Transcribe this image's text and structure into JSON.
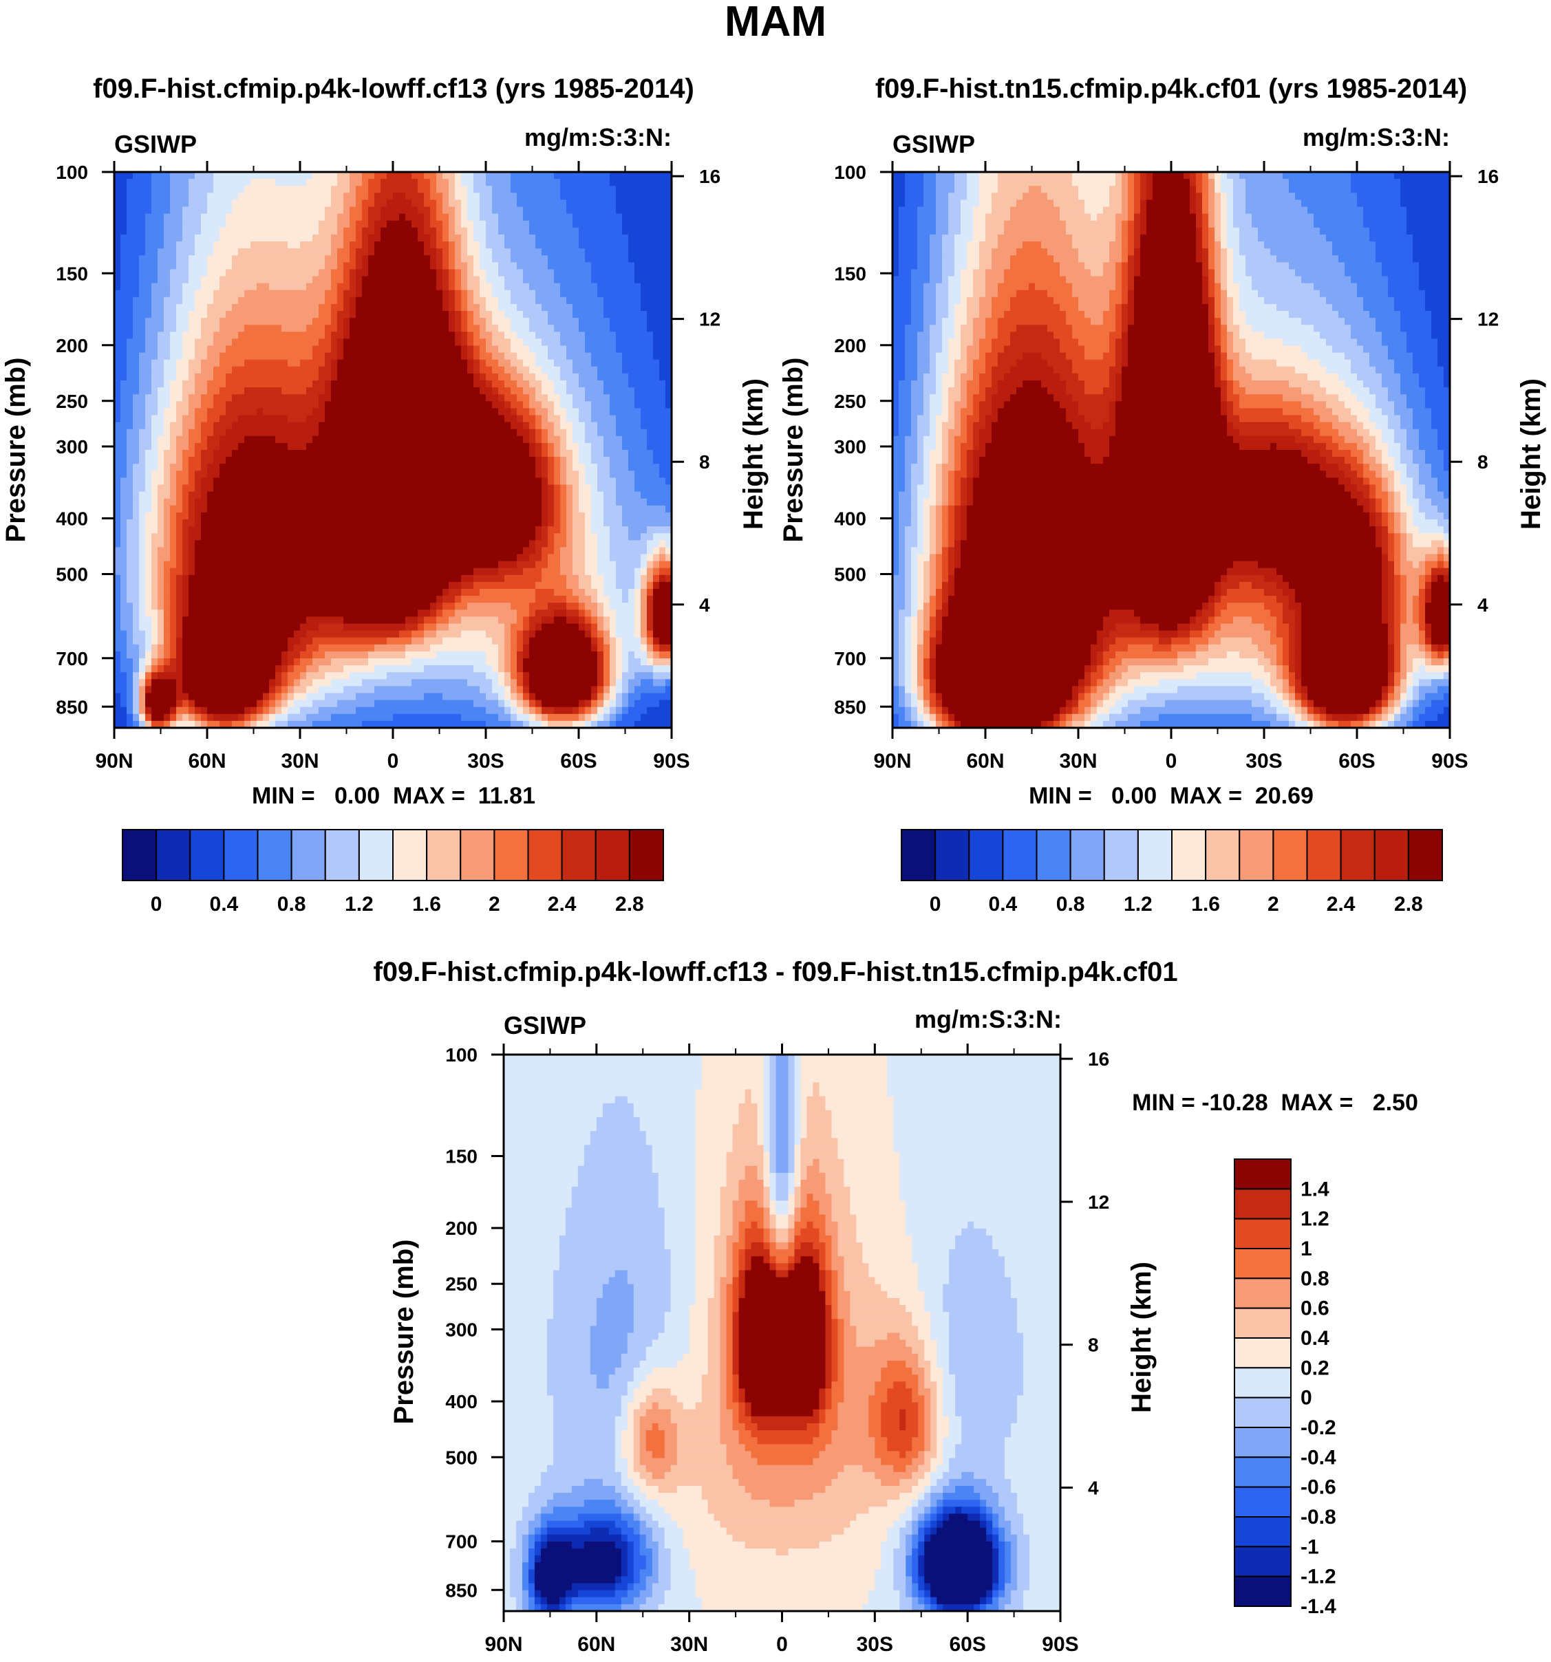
{
  "figure": {
    "title": "MAM"
  },
  "colors": {
    "abs_palette": [
      "#0a0f7a",
      "#0d2cb3",
      "#1546d8",
      "#2d65f0",
      "#4a84f5",
      "#7fa6f7",
      "#b0c9fa",
      "#d9e8fb",
      "#fde9d9",
      "#fac3a8",
      "#f79a76",
      "#f2713f",
      "#e34a22",
      "#c72a12",
      "#b81d0e",
      "#8b0303"
    ],
    "diff_palette": [
      "#0a0f7a",
      "#0d2cb3",
      "#1546d8",
      "#2d65f0",
      "#4a84f5",
      "#7fa6f7",
      "#b0c9fa",
      "#d9e8fb",
      "#fde9d9",
      "#fac3a8",
      "#f79a76",
      "#f2713f",
      "#e34a22",
      "#c72a12",
      "#8b0303"
    ]
  },
  "chart_data": [
    {
      "type": "heatmap",
      "title": "f09.F-hist.cfmip.p4k-lowff.cf13 (yrs 1985-2014)",
      "left_label": "GSIWP",
      "right_label": "mg/m:S:3:N:",
      "ylabel": "Pressure (mb)",
      "ylabel_right": "Height (km)",
      "x_ticks": [
        "90N",
        "60N",
        "30N",
        "0",
        "30S",
        "60S",
        "90S"
      ],
      "y_ticks": [
        "100",
        "150",
        "200",
        "250",
        "300",
        "400",
        "500",
        "700",
        "850"
      ],
      "y_ticks_right": [
        "16",
        "12",
        "8",
        "4"
      ],
      "ylim": [
        100,
        925
      ],
      "xlim": [
        90,
        -90
      ],
      "stats": "MIN =   0.00  MAX =  11.81",
      "colorbar_labels": [
        "0",
        "0.4",
        "0.8",
        "1.2",
        "1.6",
        "2",
        "2.4",
        "2.8"
      ],
      "field": {
        "background": 0.0,
        "blobs": [
          {
            "lat": 0,
            "p": 430,
            "slat": 42,
            "sp": 330,
            "amp": 1.0
          },
          {
            "lat": -52,
            "p": 520,
            "slat": 30,
            "sp": 260,
            "amp": 1.1
          },
          {
            "lat": 48,
            "p": 480,
            "slat": 24,
            "sp": 260,
            "amp": 3.0
          },
          {
            "lat": -3,
            "p": 300,
            "slat": 14,
            "sp": 150,
            "amp": 4.0
          },
          {
            "lat": 3,
            "p": 500,
            "slat": 12,
            "sp": 110,
            "amp": 1.6
          },
          {
            "lat": -33,
            "p": 360,
            "slat": 14,
            "sp": 90,
            "amp": 2.4
          },
          {
            "lat": -55,
            "p": 750,
            "slat": 10,
            "sp": 110,
            "amp": 3.5
          },
          {
            "lat": 55,
            "p": 760,
            "slat": 10,
            "sp": 120,
            "amp": 3.0
          },
          {
            "lat": 76,
            "p": 840,
            "slat": 4,
            "sp": 70,
            "amp": 3.0
          },
          {
            "lat": -88,
            "p": 590,
            "slat": 5,
            "sp": 90,
            "amp": 3.0
          }
        ]
      }
    },
    {
      "type": "heatmap",
      "title": "f09.F-hist.tn15.cfmip.p4k.cf01 (yrs 1985-2014)",
      "left_label": "GSIWP",
      "right_label": "mg/m:S:3:N:",
      "ylabel": "Pressure (mb)",
      "ylabel_right": "Height (km)",
      "x_ticks": [
        "90N",
        "60N",
        "30N",
        "0",
        "30S",
        "60S",
        "90S"
      ],
      "y_ticks": [
        "100",
        "150",
        "200",
        "250",
        "300",
        "400",
        "500",
        "700",
        "850"
      ],
      "y_ticks_right": [
        "16",
        "12",
        "8",
        "4"
      ],
      "ylim": [
        100,
        925
      ],
      "xlim": [
        90,
        -90
      ],
      "stats": "MIN =   0.00  MAX =  20.69",
      "colorbar_labels": [
        "0",
        "0.4",
        "0.8",
        "1.2",
        "1.6",
        "2",
        "2.4",
        "2.8"
      ],
      "field": {
        "background": 0.0,
        "blobs": [
          {
            "lat": 0,
            "p": 420,
            "slat": 44,
            "sp": 330,
            "amp": 1.1
          },
          {
            "lat": -48,
            "p": 540,
            "slat": 30,
            "sp": 250,
            "amp": 1.4
          },
          {
            "lat": 48,
            "p": 520,
            "slat": 22,
            "sp": 300,
            "amp": 3.6
          },
          {
            "lat": 0,
            "p": 320,
            "slat": 10,
            "sp": 190,
            "amp": 4.2
          },
          {
            "lat": -33,
            "p": 370,
            "slat": 14,
            "sp": 90,
            "amp": 1.6
          },
          {
            "lat": -60,
            "p": 470,
            "slat": 12,
            "sp": 120,
            "amp": 1.5
          },
          {
            "lat": -57,
            "p": 760,
            "slat": 11,
            "sp": 120,
            "amp": 3.6
          },
          {
            "lat": 58,
            "p": 780,
            "slat": 14,
            "sp": 130,
            "amp": 3.5
          },
          {
            "lat": -88,
            "p": 590,
            "slat": 5,
            "sp": 90,
            "amp": 3.0
          }
        ]
      }
    },
    {
      "type": "heatmap",
      "title": "f09.F-hist.cfmip.p4k-lowff.cf13 - f09.F-hist.tn15.cfmip.p4k.cf01",
      "left_label": "GSIWP",
      "right_label": "mg/m:S:3:N:",
      "ylabel": "Pressure (mb)",
      "ylabel_right": "Height (km)",
      "x_ticks": [
        "90N",
        "60N",
        "30N",
        "0",
        "30S",
        "60S",
        "90S"
      ],
      "y_ticks": [
        "100",
        "150",
        "200",
        "250",
        "300",
        "400",
        "500",
        "700",
        "850"
      ],
      "y_ticks_right": [
        "16",
        "12",
        "8",
        "4"
      ],
      "ylim": [
        100,
        925
      ],
      "xlim": [
        90,
        -90
      ],
      "stats": "MIN = -10.28  MAX =   2.50",
      "colorbar_labels": [
        "1.4",
        "1.2",
        "1",
        "0.8",
        "0.6",
        "0.4",
        "0.2",
        "0",
        "-0.2",
        "-0.4",
        "-0.6",
        "-0.8",
        "-1",
        "-1.2",
        "-1.4"
      ],
      "field": {
        "background": -0.1,
        "blobs": [
          {
            "lat": 0,
            "p": 560,
            "slat": 32,
            "sp": 330,
            "amp": 0.25
          },
          {
            "lat": -7,
            "p": 310,
            "slat": 6,
            "sp": 80,
            "amp": 1.6
          },
          {
            "lat": 7,
            "p": 310,
            "slat": 6,
            "sp": 80,
            "amp": 1.6
          },
          {
            "lat": 0,
            "p": 380,
            "slat": 22,
            "sp": 180,
            "amp": 0.55
          },
          {
            "lat": -40,
            "p": 430,
            "slat": 8,
            "sp": 90,
            "amp": 1.0
          },
          {
            "lat": 42,
            "p": 460,
            "slat": 7,
            "sp": 80,
            "amp": 0.9
          },
          {
            "lat": 0,
            "p": 160,
            "slat": 4,
            "sp": 70,
            "amp": -1.0
          },
          {
            "lat": 48,
            "p": 340,
            "slat": 16,
            "sp": 140,
            "amp": -0.5
          },
          {
            "lat": -58,
            "p": 350,
            "slat": 14,
            "sp": 120,
            "amp": -0.3
          },
          {
            "lat": -57,
            "p": 770,
            "slat": 9,
            "sp": 110,
            "amp": -3.0
          },
          {
            "lat": 58,
            "p": 760,
            "slat": 11,
            "sp": 110,
            "amp": -1.6
          },
          {
            "lat": 75,
            "p": 810,
            "slat": 5,
            "sp": 100,
            "amp": -1.6
          }
        ]
      }
    }
  ]
}
